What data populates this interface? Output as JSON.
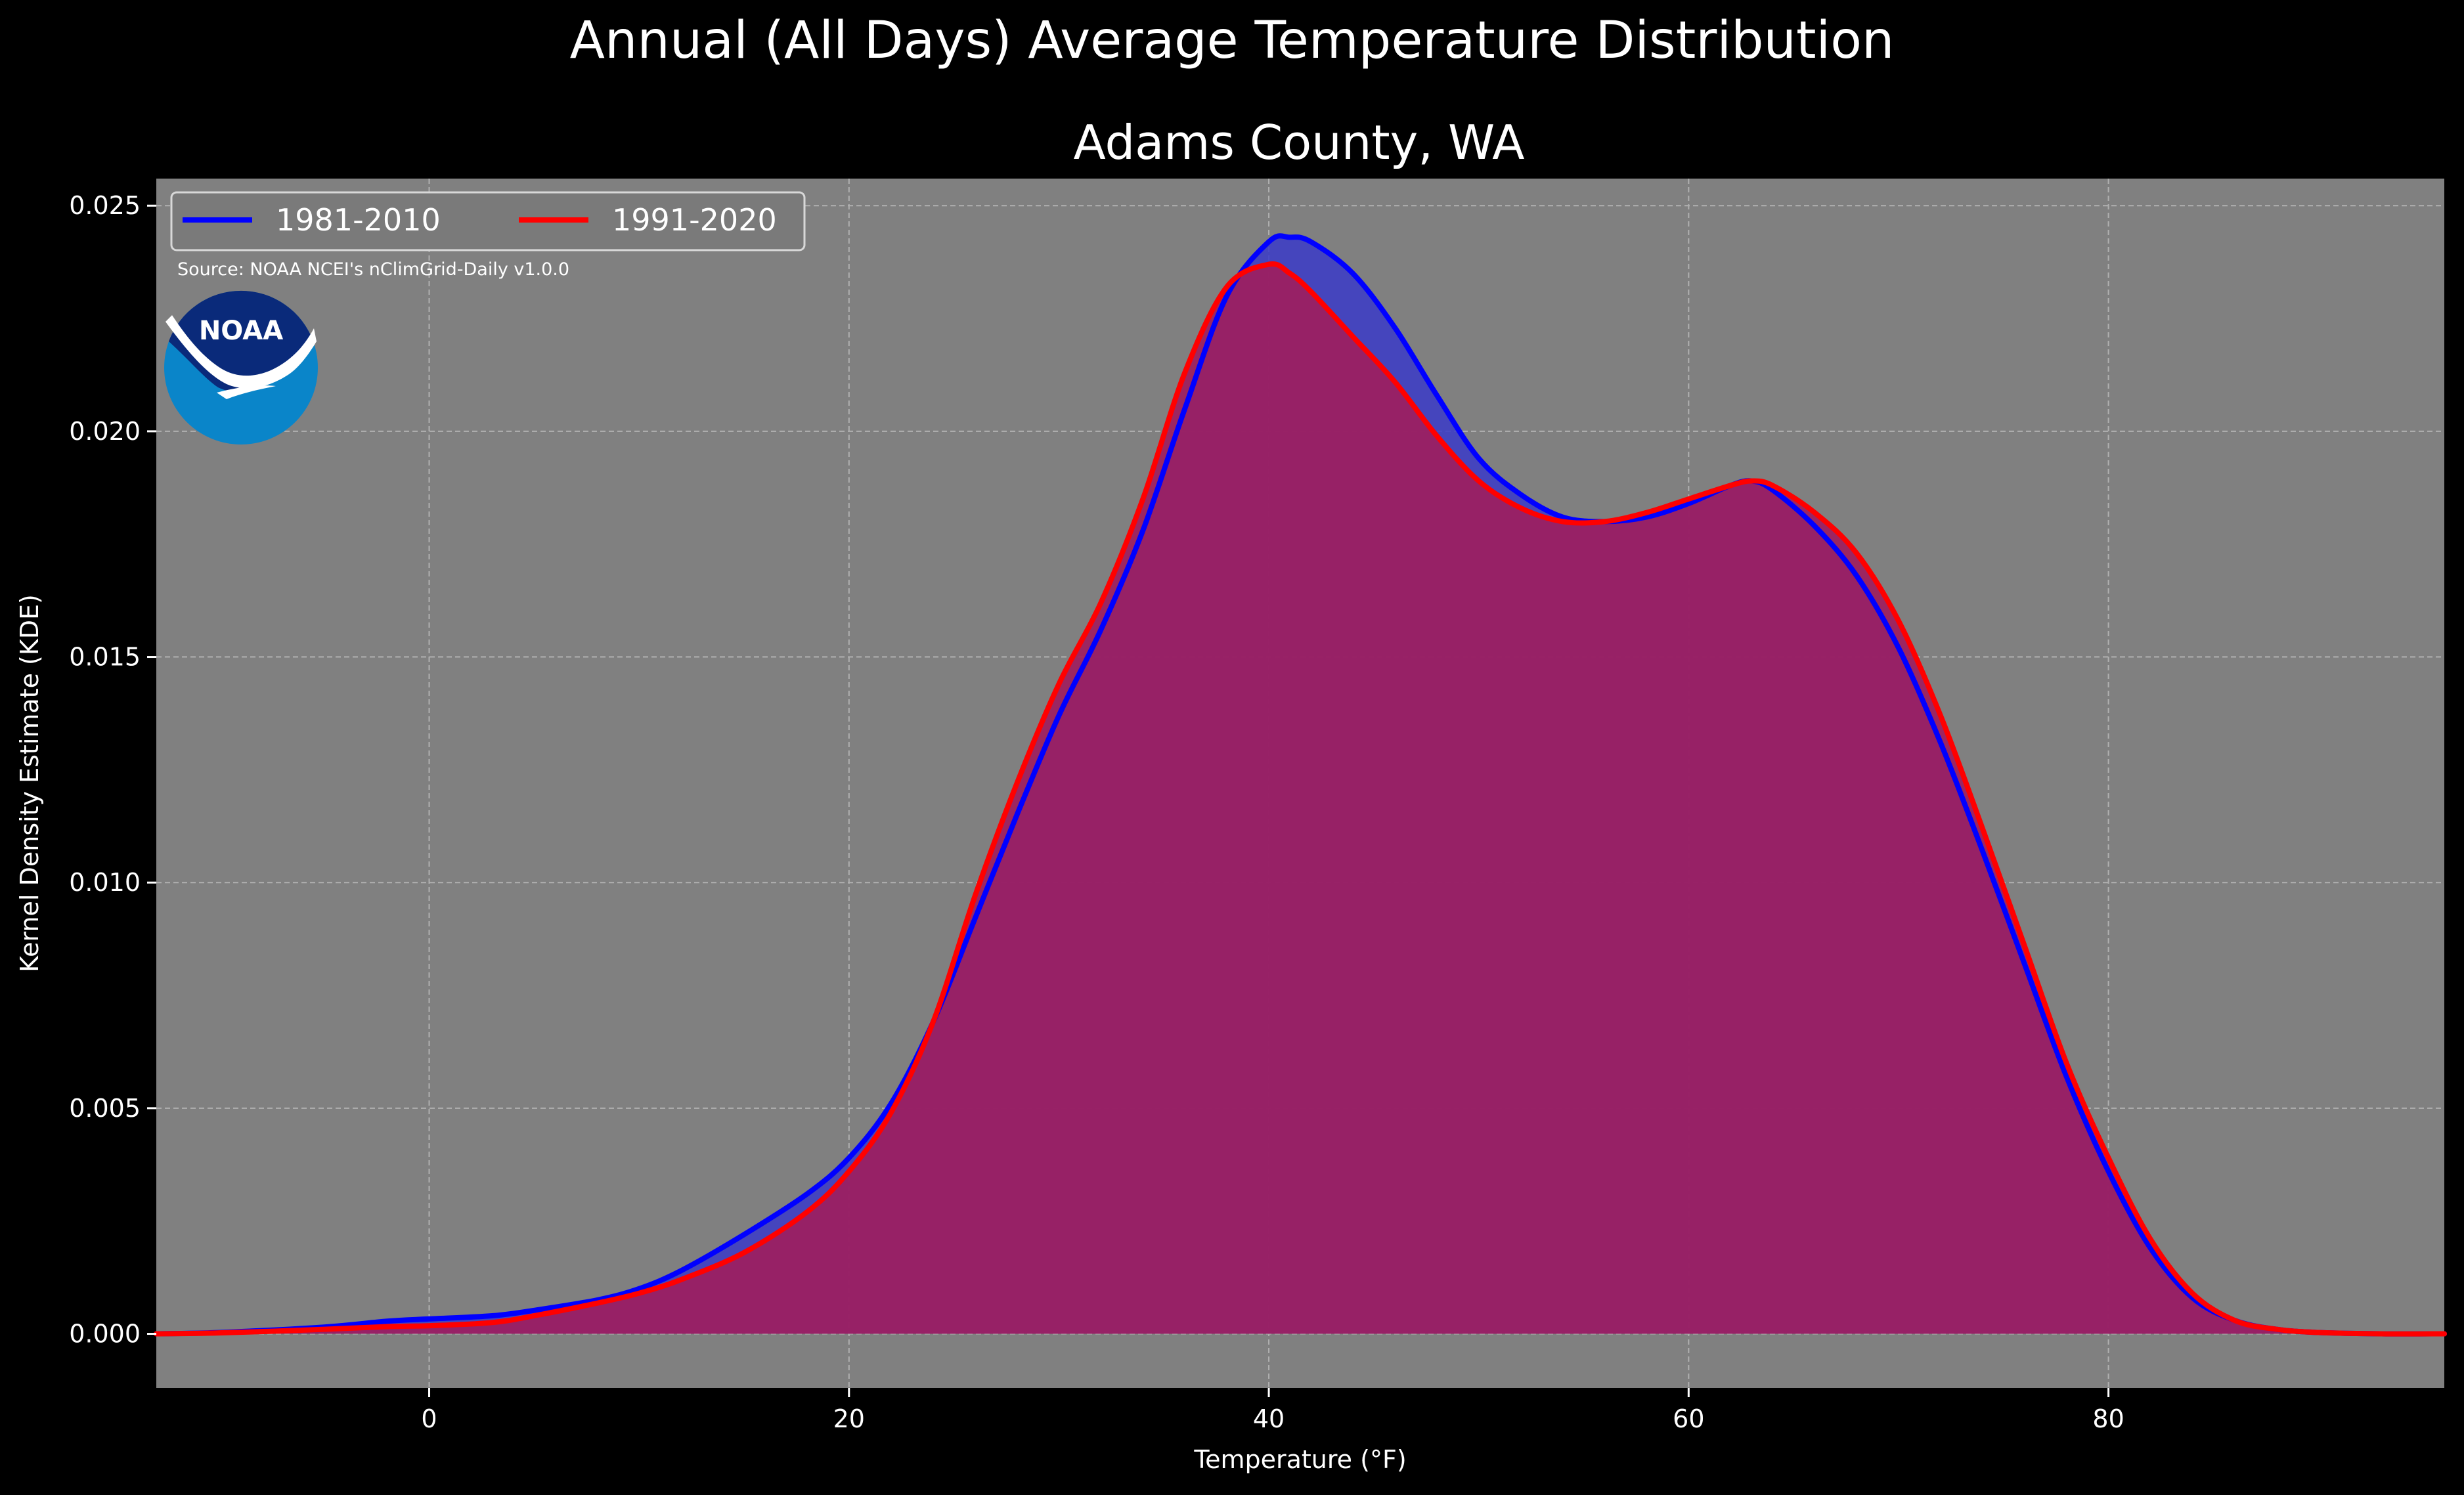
{
  "figure": {
    "suptitle": "Annual (All Days) Average Temperature Distribution",
    "title": "Adams County, WA",
    "source": "Source: NOAA NCEI's nClimGrid-Daily v1.0.0",
    "logo_text": "NOAA"
  },
  "colors": {
    "background": "#000000",
    "plot_bg": "#808080",
    "series1": "#0000ff",
    "series2": "#ff0000",
    "fill1": "#3b3bc8",
    "fill2": "#9e1e5e",
    "logo_dark": "#0a2a7a",
    "logo_light": "#0a85c9"
  },
  "chart_data": {
    "type": "area",
    "title": "Adams County, WA",
    "xlabel": "Temperature (°F)",
    "ylabel": "Kernel Density Estimate (KDE)",
    "xlim": [
      -13,
      96
    ],
    "ylim": [
      -0.0012,
      0.0256
    ],
    "xticks": [
      0,
      20,
      40,
      60,
      80
    ],
    "yticks": [
      0.0,
      0.005,
      0.01,
      0.015,
      0.02,
      0.025
    ],
    "ytick_labels": [
      "0.000",
      "0.005",
      "0.010",
      "0.015",
      "0.020",
      "0.025"
    ],
    "grid": true,
    "legend": {
      "position": "top-left",
      "columns": 2
    },
    "series": [
      {
        "name": "1981-2010",
        "x": [
          -13,
          -10,
          -5,
          -2,
          0,
          3,
          5,
          8,
          10,
          12,
          15,
          18,
          20,
          22,
          24,
          26,
          28,
          30,
          32,
          34,
          36,
          38,
          40,
          41,
          42,
          44,
          46,
          48,
          50,
          52,
          54,
          56,
          58,
          60,
          62,
          63,
          64,
          66,
          68,
          70,
          72,
          74,
          76,
          78,
          80,
          82,
          84,
          86,
          88,
          90,
          93,
          96
        ],
        "y": [
          0.0,
          3e-05,
          0.00015,
          0.00028,
          0.00033,
          0.0004,
          0.00052,
          0.00075,
          0.001,
          0.0014,
          0.0022,
          0.0031,
          0.0039,
          0.0051,
          0.0069,
          0.0092,
          0.0115,
          0.0137,
          0.0156,
          0.0178,
          0.0205,
          0.023,
          0.0242,
          0.0243,
          0.0242,
          0.0235,
          0.0223,
          0.0208,
          0.0194,
          0.0186,
          0.0181,
          0.018,
          0.0181,
          0.0184,
          0.0188,
          0.0189,
          0.0187,
          0.0179,
          0.0168,
          0.0152,
          0.0131,
          0.0107,
          0.0082,
          0.0057,
          0.0036,
          0.0019,
          0.0008,
          0.0003,
          0.0001,
          3e-05,
          0.0,
          0.0
        ]
      },
      {
        "name": "1991-2020",
        "x": [
          -13,
          -10,
          -5,
          -2,
          0,
          3,
          5,
          8,
          10,
          12,
          15,
          18,
          20,
          22,
          24,
          26,
          28,
          30,
          32,
          34,
          36,
          38,
          40,
          41,
          42,
          44,
          46,
          48,
          50,
          52,
          54,
          56,
          58,
          60,
          62,
          63,
          64,
          66,
          68,
          70,
          72,
          74,
          76,
          78,
          80,
          82,
          84,
          86,
          88,
          90,
          93,
          96
        ],
        "y": [
          0.0,
          2e-05,
          0.0001,
          0.00016,
          0.00018,
          0.00025,
          0.0004,
          0.00068,
          0.0009,
          0.0012,
          0.0018,
          0.0027,
          0.0036,
          0.0049,
          0.0069,
          0.0097,
          0.0122,
          0.0144,
          0.0162,
          0.0185,
          0.0213,
          0.0232,
          0.0237,
          0.0235,
          0.0231,
          0.0221,
          0.0211,
          0.0199,
          0.0189,
          0.0183,
          0.018,
          0.018,
          0.0182,
          0.0185,
          0.0188,
          0.0189,
          0.0188,
          0.0182,
          0.0173,
          0.0158,
          0.0137,
          0.0112,
          0.0086,
          0.006,
          0.0039,
          0.0021,
          0.0009,
          0.0003,
          0.0001,
          3e-05,
          0.0,
          0.0
        ]
      }
    ]
  }
}
